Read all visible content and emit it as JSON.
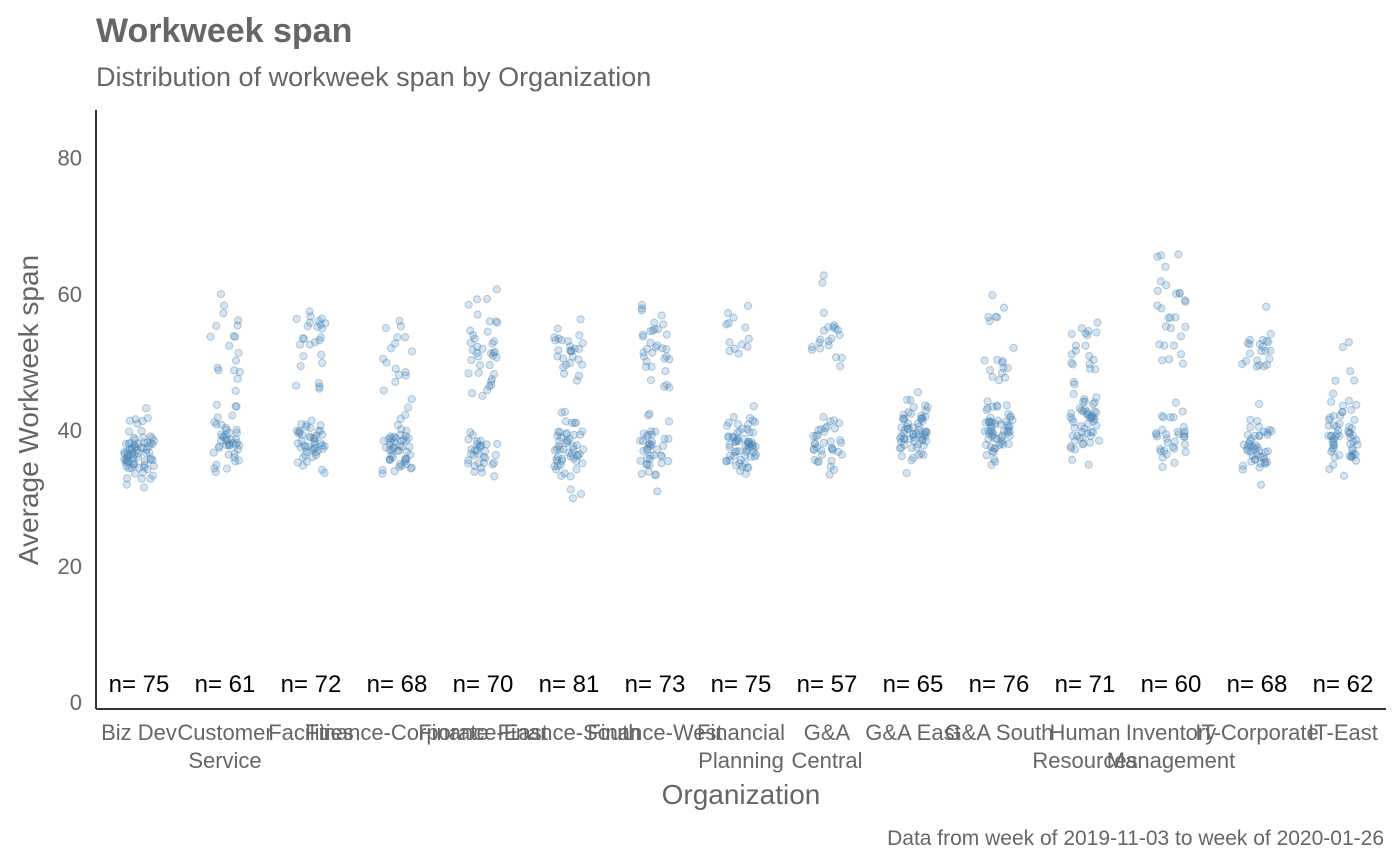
{
  "chart_data": {
    "type": "scatter",
    "style": "jitter-strip",
    "title": "Workweek span",
    "subtitle": "Distribution of workweek span by Organization",
    "xlabel": "Organization",
    "ylabel": "Average Workweek span",
    "caption": "Data from week of 2019-11-03 to week of 2020-01-26",
    "ylim": [
      -1,
      87
    ],
    "yticks": [
      0,
      20,
      40,
      60,
      80
    ],
    "grid": false,
    "legend": "none",
    "point_color": "#4682b4",
    "categories": [
      {
        "label": [
          "Biz Dev"
        ],
        "n_label": "n= 75",
        "n": 75,
        "clusters": [
          [
            37,
            2.2,
            72
          ],
          [
            32,
            0.6,
            3
          ]
        ]
      },
      {
        "label": [
          "Customer",
          "Service"
        ],
        "n_label": "n= 61",
        "n": 61,
        "clusters": [
          [
            39,
            2.5,
            44
          ],
          [
            55,
            2.5,
            11
          ],
          [
            49,
            1.5,
            6
          ]
        ]
      },
      {
        "label": [
          "Facilities"
        ],
        "n_label": "n= 72",
        "n": 72,
        "clusters": [
          [
            38,
            2.3,
            46
          ],
          [
            54,
            2.8,
            20
          ],
          [
            47,
            1.2,
            6
          ]
        ]
      },
      {
        "label": [
          "Finance-Corporate"
        ],
        "n_label": "n= 68",
        "n": 68,
        "clusters": [
          [
            37,
            2.0,
            50
          ],
          [
            50,
            2.8,
            16
          ],
          [
            56,
            0.5,
            2
          ]
        ]
      },
      {
        "label": [
          "Finance-East"
        ],
        "n_label": "n= 70",
        "n": 70,
        "clusters": [
          [
            36,
            2.4,
            32
          ],
          [
            53,
            3.2,
            32
          ],
          [
            45,
            1.5,
            6
          ]
        ]
      },
      {
        "label": [
          "Finance-South"
        ],
        "n_label": "n= 81",
        "n": 81,
        "clusters": [
          [
            37,
            2.3,
            52
          ],
          [
            52,
            2.5,
            27
          ],
          [
            31,
            0.4,
            2
          ]
        ]
      },
      {
        "label": [
          "Finance-West"
        ],
        "n_label": "n= 73",
        "n": 73,
        "clusters": [
          [
            37,
            2.2,
            38
          ],
          [
            52,
            3.0,
            29
          ],
          [
            45,
            1.5,
            6
          ]
        ]
      },
      {
        "label": [
          "Financial",
          "Planning"
        ],
        "n_label": "n= 75",
        "n": 75,
        "clusters": [
          [
            38,
            2.0,
            62
          ],
          [
            54,
            2.0,
            13
          ]
        ]
      },
      {
        "label": [
          "G&A",
          "Central"
        ],
        "n_label": "n= 57",
        "n": 57,
        "clusters": [
          [
            38,
            2.2,
            36
          ],
          [
            53,
            2.8,
            21
          ]
        ]
      },
      {
        "label": [
          "G&A East"
        ],
        "n_label": "n= 65",
        "n": 65,
        "clusters": [
          [
            39,
            2.6,
            65
          ]
        ]
      },
      {
        "label": [
          "G&A South"
        ],
        "n_label": "n= 76",
        "n": 76,
        "clusters": [
          [
            40,
            2.6,
            58
          ],
          [
            49,
            2.0,
            12
          ],
          [
            58,
            2.0,
            6
          ]
        ]
      },
      {
        "label": [
          "Human",
          "Resources"
        ],
        "n_label": "n= 71",
        "n": 71,
        "clusters": [
          [
            41,
            2.2,
            51
          ],
          [
            52,
            2.5,
            20
          ]
        ]
      },
      {
        "label": [
          "Inventory",
          "Management"
        ],
        "n_label": "n= 60",
        "n": 60,
        "clusters": [
          [
            39,
            2.0,
            32
          ],
          [
            55,
            3.5,
            22
          ],
          [
            65,
            2.5,
            6
          ]
        ]
      },
      {
        "label": [
          "IT-Corporate"
        ],
        "n_label": "n= 68",
        "n": 68,
        "clusters": [
          [
            38,
            2.5,
            46
          ],
          [
            53,
            2.5,
            22
          ]
        ]
      },
      {
        "label": [
          "IT-East"
        ],
        "n_label": "n= 62",
        "n": 62,
        "clusters": [
          [
            39,
            2.5,
            54
          ],
          [
            50,
            3.5,
            8
          ]
        ]
      }
    ]
  }
}
